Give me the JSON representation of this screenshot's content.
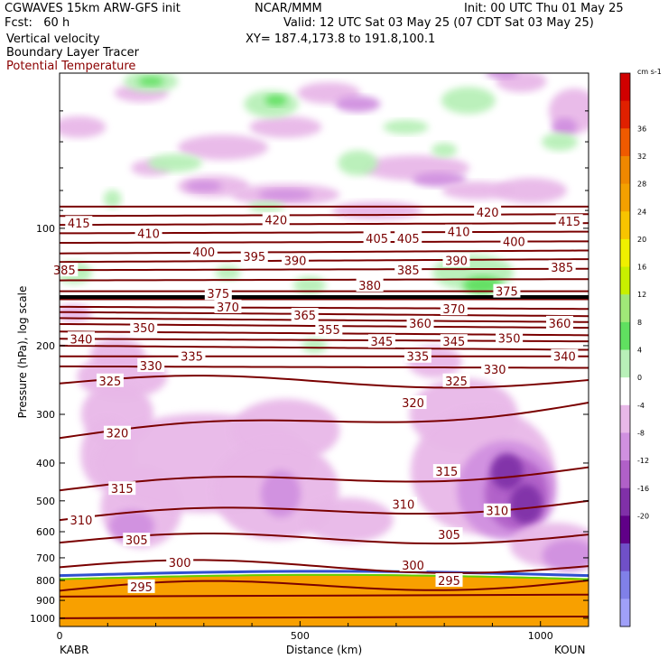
{
  "header": {
    "left_line1": "CGWAVES 15km ARW-GFS init",
    "left_line2": "Fcst:   60 h",
    "field1": "Vertical velocity",
    "field2": "Boundary Layer Tracer",
    "field3": "Potential Temperature",
    "center_line1": "NCAR/MMM",
    "init": "Init: 00 UTC Thu 01 May 25",
    "valid": "Valid: 12 UTC Sat 03 May 25 (07 CDT Sat 03 May 25)",
    "xy": "XY= 187.4,173.8 to 191.8,100.1"
  },
  "colors": {
    "theta_contour": "#7a0000",
    "field3_text": "#8b0000",
    "tropopause": "#000000"
  },
  "chart_data": {
    "type": "heatmap",
    "ylabel": "Pressure (hPa), log scale",
    "xlabel": "Distance (km)",
    "y_scale": "log",
    "xlim": [
      0,
      1100
    ],
    "ylim": [
      1050,
      40
    ],
    "x_ticks": [
      0,
      500,
      1000
    ],
    "y_ticks": [
      100,
      200,
      300,
      400,
      500,
      600,
      700,
      800,
      900,
      1000
    ],
    "start_label": "KABR",
    "end_label": "KOUN",
    "colorbar": {
      "unit": "cm s-1",
      "levels": [
        36,
        32,
        28,
        24,
        20,
        16,
        12,
        8,
        4,
        0,
        -4,
        -8,
        -12,
        -16,
        -20
      ],
      "colors": [
        "#d00000",
        "#e02000",
        "#f05a00",
        "#f08800",
        "#f4a000",
        "#f8c400",
        "#f0f000",
        "#c8f000",
        "#a0e878",
        "#60e060",
        "#b8f0b8",
        "#ffffff",
        "#e8b8e8",
        "#d090e0",
        "#b060c8",
        "#8030a8",
        "#600088",
        "#7050c8",
        "#8080e8",
        "#a0a0f8"
      ]
    },
    "theta_labels": [
      {
        "v": 415,
        "x": 40,
        "p": 97
      },
      {
        "v": 410,
        "x": 185,
        "p": 103
      },
      {
        "v": 420,
        "x": 450,
        "p": 95
      },
      {
        "v": 400,
        "x": 300,
        "p": 115
      },
      {
        "v": 395,
        "x": 405,
        "p": 118
      },
      {
        "v": 390,
        "x": 490,
        "p": 121
      },
      {
        "v": 405,
        "x": 660,
        "p": 106
      },
      {
        "v": 405,
        "x": 725,
        "p": 106
      },
      {
        "v": 410,
        "x": 830,
        "p": 102
      },
      {
        "v": 420,
        "x": 890,
        "p": 91
      },
      {
        "v": 415,
        "x": 1060,
        "p": 96
      },
      {
        "v": 400,
        "x": 945,
        "p": 108
      },
      {
        "v": 390,
        "x": 825,
        "p": 121
      },
      {
        "v": 385,
        "x": 10,
        "p": 128
      },
      {
        "v": 385,
        "x": 725,
        "p": 128
      },
      {
        "v": 385,
        "x": 1045,
        "p": 126
      },
      {
        "v": 380,
        "x": 645,
        "p": 140
      },
      {
        "v": 375,
        "x": 330,
        "p": 147
      },
      {
        "v": 375,
        "x": 930,
        "p": 145
      },
      {
        "v": 370,
        "x": 350,
        "p": 159
      },
      {
        "v": 370,
        "x": 820,
        "p": 161
      },
      {
        "v": 365,
        "x": 510,
        "p": 167
      },
      {
        "v": 360,
        "x": 750,
        "p": 175
      },
      {
        "v": 360,
        "x": 1040,
        "p": 175
      },
      {
        "v": 355,
        "x": 560,
        "p": 182
      },
      {
        "v": 350,
        "x": 175,
        "p": 180
      },
      {
        "v": 350,
        "x": 935,
        "p": 191
      },
      {
        "v": 345,
        "x": 670,
        "p": 195
      },
      {
        "v": 345,
        "x": 820,
        "p": 195
      },
      {
        "v": 340,
        "x": 45,
        "p": 192
      },
      {
        "v": 340,
        "x": 1050,
        "p": 213
      },
      {
        "v": 335,
        "x": 275,
        "p": 213
      },
      {
        "v": 335,
        "x": 745,
        "p": 213
      },
      {
        "v": 330,
        "x": 190,
        "p": 225
      },
      {
        "v": 330,
        "x": 905,
        "p": 230
      },
      {
        "v": 325,
        "x": 105,
        "p": 246
      },
      {
        "v": 325,
        "x": 825,
        "p": 246
      },
      {
        "v": 320,
        "x": 120,
        "p": 335
      },
      {
        "v": 320,
        "x": 735,
        "p": 280
      },
      {
        "v": 315,
        "x": 130,
        "p": 465
      },
      {
        "v": 315,
        "x": 805,
        "p": 420
      },
      {
        "v": 310,
        "x": 45,
        "p": 560
      },
      {
        "v": 310,
        "x": 715,
        "p": 510
      },
      {
        "v": 310,
        "x": 910,
        "p": 530
      },
      {
        "v": 305,
        "x": 160,
        "p": 630
      },
      {
        "v": 305,
        "x": 810,
        "p": 610
      },
      {
        "v": 300,
        "x": 250,
        "p": 720
      },
      {
        "v": 300,
        "x": 735,
        "p": 730
      },
      {
        "v": 295,
        "x": 170,
        "p": 830
      },
      {
        "v": 295,
        "x": 810,
        "p": 800
      }
    ]
  }
}
